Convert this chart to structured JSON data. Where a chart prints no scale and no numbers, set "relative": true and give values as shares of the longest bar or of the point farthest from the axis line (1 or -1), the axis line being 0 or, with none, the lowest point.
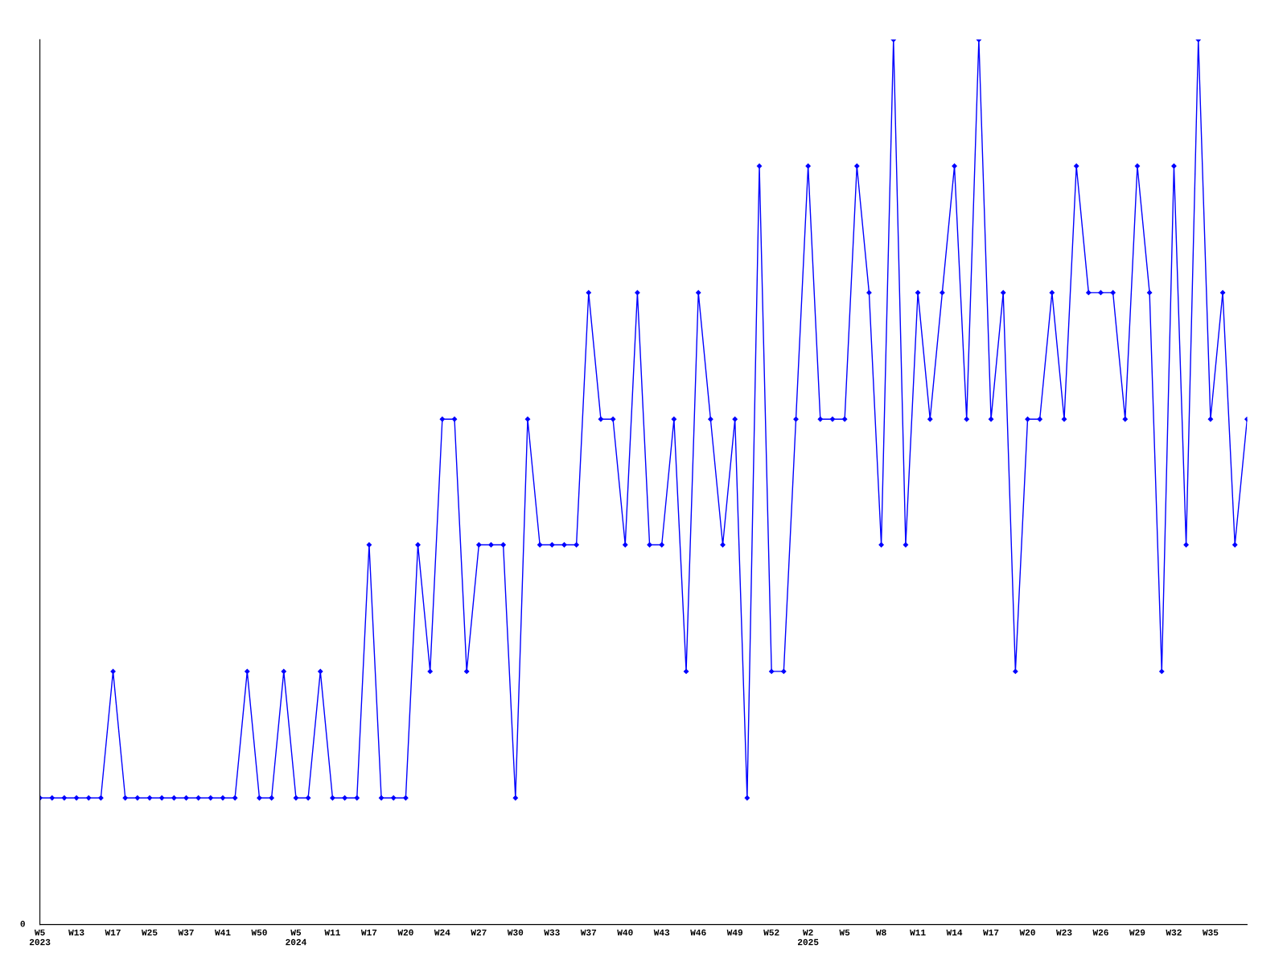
{
  "chart_data": {
    "type": "line",
    "relative": true,
    "categories": [
      "W5\n2023",
      null,
      null,
      "W13",
      null,
      null,
      "W17",
      null,
      null,
      "W25",
      null,
      null,
      "W37",
      null,
      null,
      "W41",
      null,
      null,
      "W50",
      null,
      null,
      "W5\n2024",
      null,
      null,
      "W11",
      null,
      null,
      "W17",
      null,
      null,
      "W20",
      null,
      null,
      "W24",
      null,
      null,
      "W27",
      null,
      null,
      "W30",
      null,
      null,
      "W33",
      null,
      null,
      "W37",
      null,
      null,
      "W40",
      null,
      null,
      "W43",
      null,
      null,
      "W46",
      null,
      null,
      "W49",
      null,
      null,
      "W52",
      null,
      null,
      "W2\n2025",
      null,
      null,
      "W5",
      null,
      null,
      "W8",
      null,
      null,
      "W11",
      null,
      null,
      "W14",
      null,
      null,
      "W17",
      null,
      null,
      "W20",
      null,
      null,
      "W23",
      null,
      null,
      "W26",
      null,
      null,
      "W29",
      null,
      null,
      "W32",
      null,
      null,
      "W35",
      null,
      null,
      null
    ],
    "series": [
      {
        "color": "#0000ff",
        "values": [
          0.143,
          0.143,
          0.143,
          0.143,
          0.143,
          0.143,
          0.286,
          0.143,
          0.143,
          0.143,
          0.143,
          0.143,
          0.143,
          0.143,
          0.143,
          0.143,
          0.143,
          0.286,
          0.143,
          0.143,
          0.286,
          0.143,
          0.143,
          0.286,
          0.143,
          0.143,
          0.143,
          0.429,
          0.143,
          0.143,
          0.143,
          0.429,
          0.286,
          0.571,
          0.571,
          0.286,
          0.429,
          0.429,
          0.429,
          0.143,
          0.571,
          0.429,
          0.429,
          0.429,
          0.429,
          0.714,
          0.571,
          0.571,
          0.429,
          0.714,
          0.429,
          0.429,
          0.571,
          0.286,
          0.714,
          0.571,
          0.429,
          0.571,
          0.143,
          0.857,
          0.286,
          0.286,
          0.571,
          0.857,
          0.571,
          0.571,
          0.571,
          0.857,
          0.714,
          0.429,
          1,
          0.429,
          0.714,
          0.571,
          0.714,
          0.857,
          0.571,
          1,
          0.571,
          0.714,
          0.286,
          0.571,
          0.571,
          0.714,
          0.571,
          0.857,
          0.714,
          0.714,
          0.714,
          0.571,
          0.857,
          0.714,
          0.286,
          0.857,
          0.429,
          1,
          0.571,
          0.714,
          0.429,
          0.571
        ]
      }
    ],
    "annotations": [
      "0"
    ],
    "marker": "diamond",
    "line_style": "solid",
    "grid": false,
    "legend": false
  }
}
